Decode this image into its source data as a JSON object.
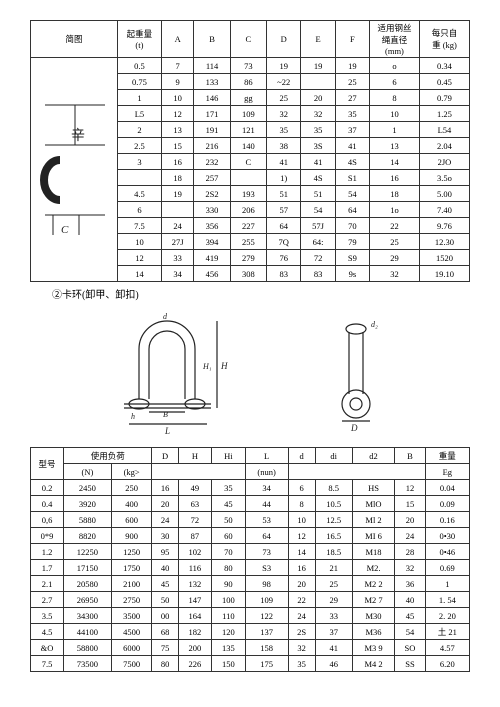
{
  "table1": {
    "headers": [
      "简图",
      "起重量\n(t)",
      "A",
      "B",
      "C",
      "D",
      "E",
      "F",
      "适用钢丝\n绳直径\n(mm)",
      "每只自\n重 (kg)"
    ],
    "diagram_label_top": "辛",
    "diagram_label_bottom": "C",
    "rows": [
      [
        "0.5",
        "7",
        "114",
        "73",
        "19",
        "19",
        "19",
        "o",
        "0.34"
      ],
      [
        "0.75",
        "9",
        "133",
        "86",
        "~22",
        "",
        "25",
        "6",
        "0.45"
      ],
      [
        "1",
        "10",
        "146",
        "gg",
        "25",
        "20",
        "27",
        "8",
        "0.79"
      ],
      [
        "L5",
        "12",
        "171",
        "109",
        "32",
        "32",
        "35",
        "10",
        "1.25"
      ],
      [
        "2",
        "13",
        "191",
        "121",
        "35",
        "35",
        "37",
        "1",
        "L54"
      ],
      [
        "2.5",
        "15",
        "216",
        "140",
        "38",
        "3S",
        "41",
        "13",
        "2.04"
      ],
      [
        "3",
        "16",
        "232",
        "C",
        "41",
        "41",
        "4S",
        "14",
        "2JO"
      ],
      [
        "",
        "18",
        "257",
        "",
        "1)",
        "4S",
        "S1",
        "16",
        "3.5o"
      ],
      [
        "4.5",
        "19",
        "2S2",
        "193",
        "51",
        "51",
        "54",
        "18",
        "5.00"
      ],
      [
        "6",
        "",
        "330",
        "206",
        "57",
        "54",
        "64",
        "1o",
        "7.40"
      ],
      [
        "7.5",
        "24",
        "356",
        "227",
        "64",
        "57J",
        "70",
        "22",
        "9.76"
      ],
      [
        "10",
        "27J",
        "394",
        "255",
        "7Q",
        "64:",
        "79",
        "25",
        "12.30"
      ],
      [
        "12",
        "33",
        "419",
        "279",
        "76",
        "72",
        "S9",
        "29",
        "1520"
      ],
      [
        "14",
        "34",
        "456",
        "308",
        "83",
        "83",
        "9s",
        "32",
        "19.10"
      ]
    ]
  },
  "caption": "②卡环(卸甲、卸扣)",
  "table2": {
    "head_row1": [
      "型号",
      "使用负荷",
      "D",
      "H",
      "Hi",
      "L",
      "d",
      "di",
      "d2",
      "B",
      "重量"
    ],
    "head_row2": [
      "(N)",
      "(kg>",
      "",
      "",
      "",
      "(nun)",
      "",
      "",
      "",
      "",
      "Eg"
    ],
    "rows": [
      [
        "0.2",
        "2450",
        "250",
        "16",
        "49",
        "35",
        "34",
        "6",
        "8.5",
        "HS",
        "12",
        "0.04"
      ],
      [
        "0.4",
        "3920",
        "400",
        "20",
        "63",
        "45",
        "44",
        "8",
        "10.5",
        "MlO",
        "15",
        "0.09"
      ],
      [
        "0,6",
        "5880",
        "600",
        "24",
        "72",
        "50",
        "53",
        "10",
        "12.5",
        "Ml 2",
        "20",
        "0.16"
      ],
      [
        "0*9",
        "8820",
        "900",
        "30",
        "87",
        "60",
        "64",
        "12",
        "16.5",
        "MI 6",
        "24",
        "0•30"
      ],
      [
        "1.2",
        "12250",
        "1250",
        "95",
        "102",
        "70",
        "73",
        "14",
        "18.5",
        "M18",
        "28",
        "0•46"
      ],
      [
        "1.7",
        "17150",
        "1750",
        "40",
        "116",
        "80",
        "S3",
        "16",
        "21",
        "M2.",
        "32",
        "0.69"
      ],
      [
        "2.1",
        "20580",
        "2100",
        "45",
        "132",
        "90",
        "98",
        "20",
        "25",
        "M2 2",
        "36",
        "1"
      ],
      [
        "2.7",
        "26950",
        "2750",
        "50",
        "147",
        "100",
        "109",
        "22",
        "29",
        "M2 7",
        "40",
        "1. 54"
      ],
      [
        "3.5",
        "34300",
        "3500",
        "00",
        "164",
        "110",
        "122",
        "24",
        "33",
        "M30",
        "45",
        "2. 20"
      ],
      [
        "4.5",
        "44100",
        "4500",
        "68",
        "182",
        "120",
        "137",
        "2S",
        "37",
        "M36",
        "54",
        "土 21"
      ],
      [
        "&O",
        "58800",
        "6000",
        "75",
        "200",
        "135",
        "158",
        "32",
        "41",
        "M3 9",
        "SO",
        "4.57"
      ],
      [
        "7.5",
        "73500",
        "7500",
        "80",
        "226",
        "150",
        "175",
        "35",
        "46",
        "M4 2",
        "SS",
        "6.20"
      ]
    ]
  }
}
